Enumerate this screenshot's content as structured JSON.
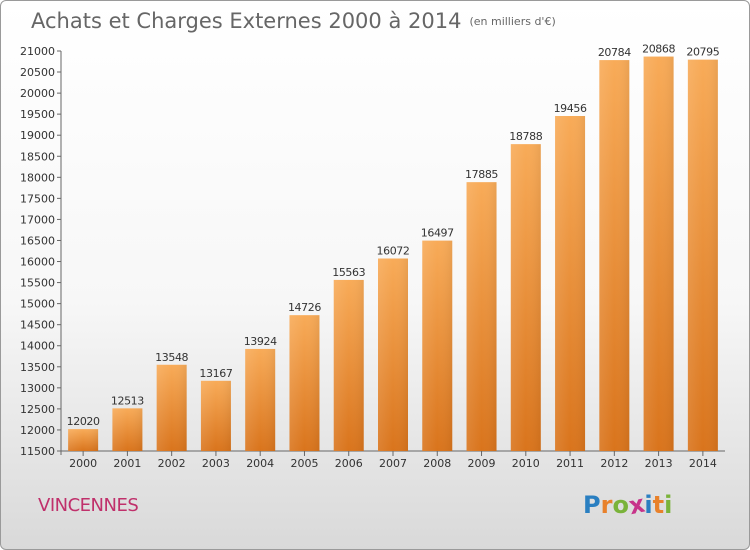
{
  "header": {
    "title": "Achats et Charges Externes 2000 à 2014",
    "unit": "(en milliers d'€)"
  },
  "footer": {
    "city": "VINCENNES",
    "logo": "Proxiti"
  },
  "colors": {
    "bar_light": "#f7a852",
    "bar_dark": "#d9741c",
    "city": "#c0306b",
    "text": "#666666"
  },
  "chart_data": {
    "type": "bar",
    "title": "Achats et Charges Externes 2000 à 2014",
    "subtitle": "(en milliers d'€)",
    "categories": [
      "2000",
      "2001",
      "2002",
      "2003",
      "2004",
      "2005",
      "2006",
      "2007",
      "2008",
      "2009",
      "2010",
      "2011",
      "2012",
      "2013",
      "2014"
    ],
    "values": [
      12020,
      12513,
      13548,
      13167,
      13924,
      14726,
      15563,
      16072,
      16497,
      17885,
      18788,
      19456,
      20784,
      20868,
      20795
    ],
    "ylim": [
      11500,
      21000
    ],
    "yticks": [
      11500,
      12000,
      12500,
      13000,
      13500,
      14000,
      14500,
      15000,
      15500,
      16000,
      16500,
      17000,
      17500,
      18000,
      18500,
      19000,
      19500,
      20000,
      20500,
      21000
    ],
    "grid": false,
    "legend": "none"
  }
}
